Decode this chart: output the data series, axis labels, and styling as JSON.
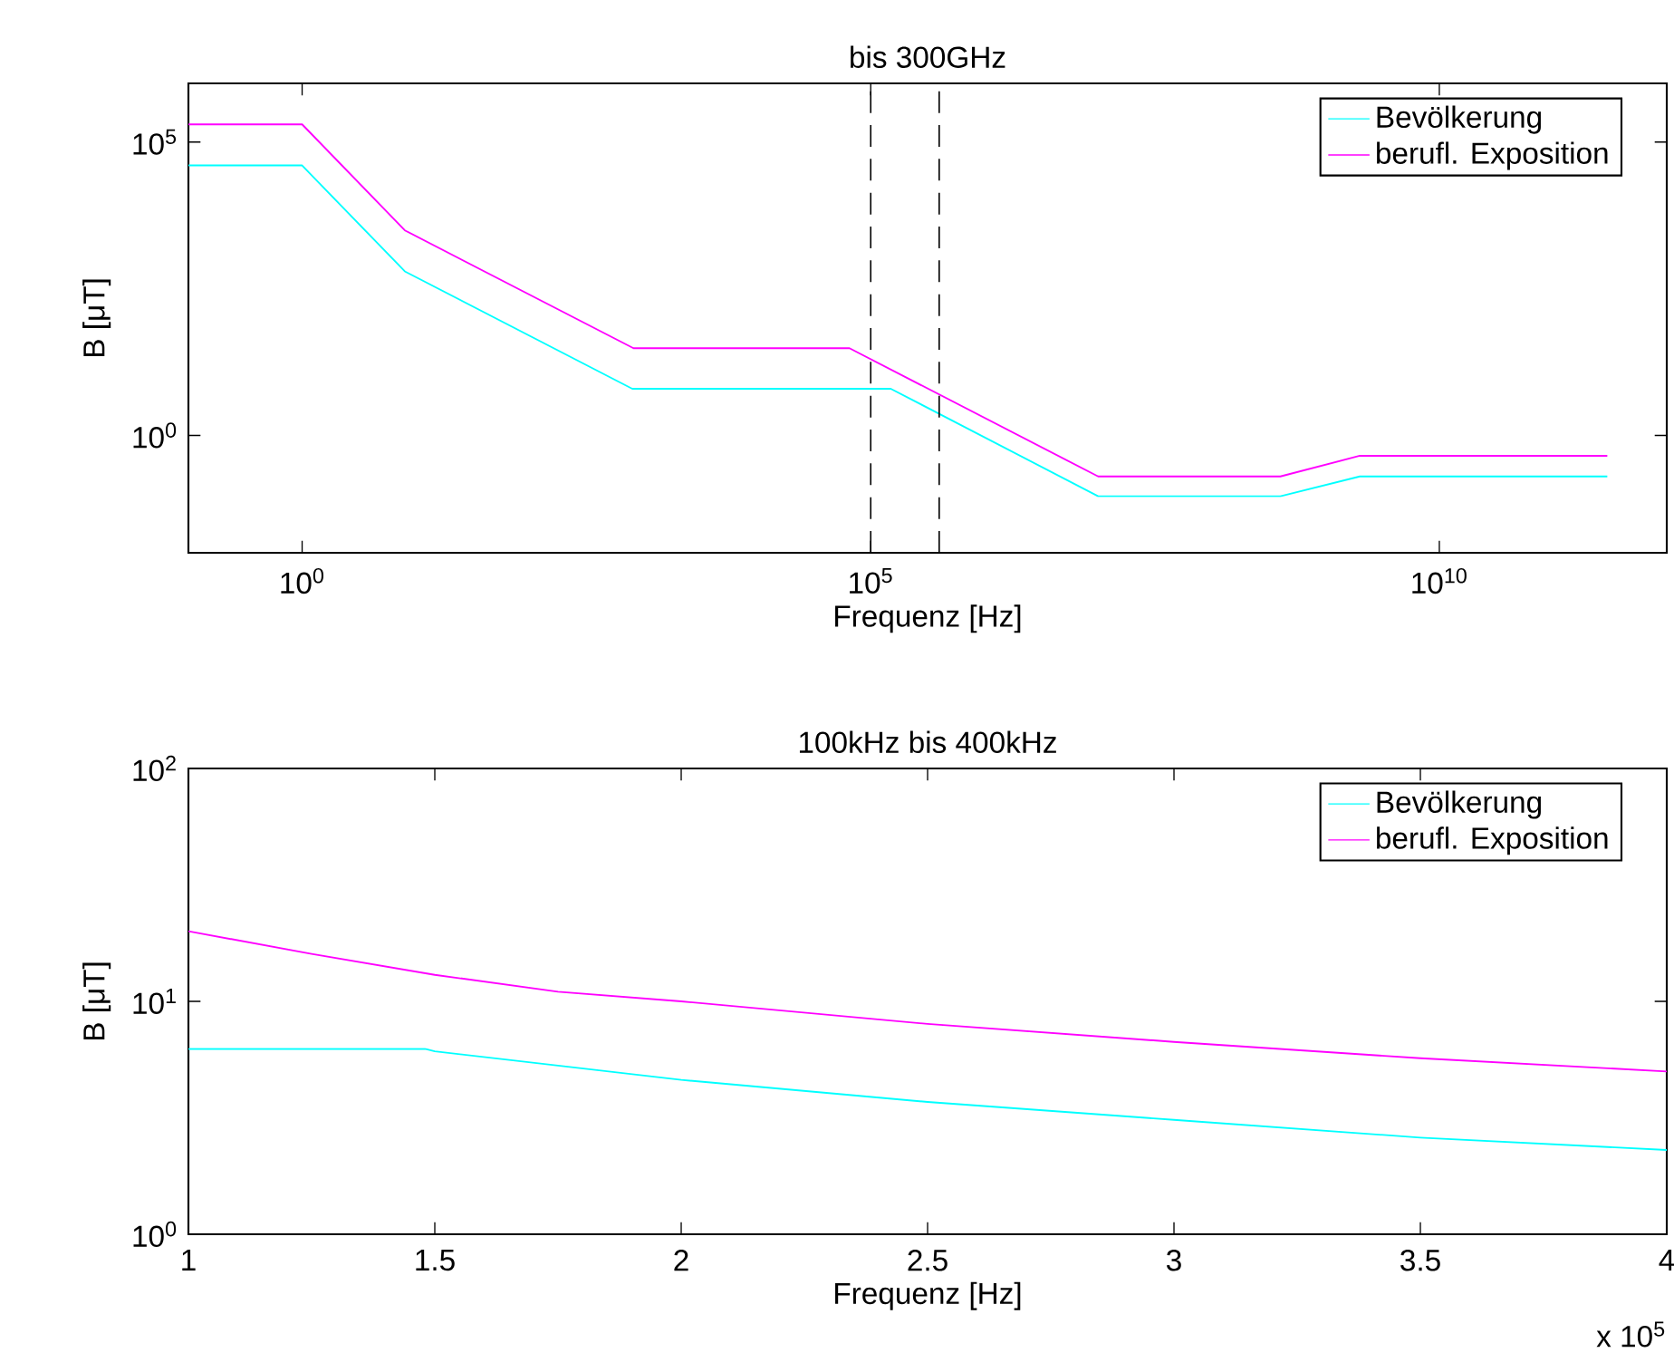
{
  "chart_data": [
    {
      "type": "line",
      "title": "bis 300GHz",
      "xlabel": "Frequenz [Hz]",
      "ylabel": "B [μT]",
      "log": "xy",
      "xlim": [
        0.1,
        1000000000000
      ],
      "ylim": [
        0.01,
        1000000
      ],
      "xticks": [
        {
          "value": 1,
          "label": "10$^{0}$"
        },
        {
          "value": 100000,
          "label": "10$^{5}$"
        },
        {
          "value": 10000000000,
          "label": "10$^{10}$"
        }
      ],
      "yticks": [
        {
          "value": 1,
          "label": "10$^{0}$"
        },
        {
          "value": 100000,
          "label": "10$^{5}$"
        }
      ],
      "series": [
        {
          "name": "Bevölkerung",
          "color": "#00ffff",
          "x": [
            0.1,
            1,
            8,
            800,
            150000,
            10000000,
            400000000,
            2000000000,
            300000000000
          ],
          "values": [
            40000,
            40000,
            625,
            6.25,
            6.25,
            0.092,
            0.092,
            0.2,
            0.2
          ]
        },
        {
          "name": "berufl. Exposition",
          "color": "#ff00ff",
          "x": [
            0.1,
            1,
            8,
            820,
            65000,
            10000000,
            400000000,
            2000000000,
            300000000000
          ],
          "values": [
            200000,
            200000,
            3125,
            30.7,
            30.7,
            0.2,
            0.2,
            0.45,
            0.45
          ]
        }
      ],
      "ref_lines": [
        {
          "axis": "x",
          "value": 100000,
          "color": "#000000",
          "line_style": "dashed"
        },
        {
          "axis": "x",
          "value": 400000,
          "color": "#000000",
          "line_style": "dashed"
        }
      ],
      "legend": "top right",
      "grid": false,
      "line_style": "solid"
    },
    {
      "type": "line",
      "title": "100kHz bis 400kHz",
      "xlabel": "Frequenz [Hz]",
      "ylabel": "B [μT]",
      "log": "y",
      "xlim": [
        1,
        4
      ],
      "ylim": [
        1,
        100
      ],
      "xticks": [
        1,
        1.5,
        2,
        2.5,
        3,
        3.5,
        4
      ],
      "yticks": [
        {
          "value": 1,
          "label": "10$^{0}$"
        },
        {
          "value": 10,
          "label": "10$^{1}$"
        },
        {
          "value": 100,
          "label": "10$^{2}$"
        }
      ],
      "series": [
        {
          "name": "Bevölkerung",
          "color": "#00ffff",
          "x": [
            1,
            1.48,
            1.5,
            1.75,
            2,
            2.5,
            3,
            3.5,
            4
          ],
          "values": [
            6.25,
            6.25,
            6.1,
            5.3,
            4.6,
            3.7,
            3.1,
            2.6,
            2.3
          ]
        },
        {
          "name": "berufl. Exposition",
          "color": "#ff00ff",
          "x": [
            1,
            1.25,
            1.5,
            1.75,
            2,
            2.5,
            3,
            3.5,
            4
          ],
          "values": [
            20,
            16,
            13,
            11,
            10,
            8,
            6.7,
            5.7,
            5
          ]
        }
      ],
      "annotations": [
        "x 10$^{5}$"
      ],
      "legend": "top right",
      "grid": false,
      "line_style": "solid"
    }
  ]
}
